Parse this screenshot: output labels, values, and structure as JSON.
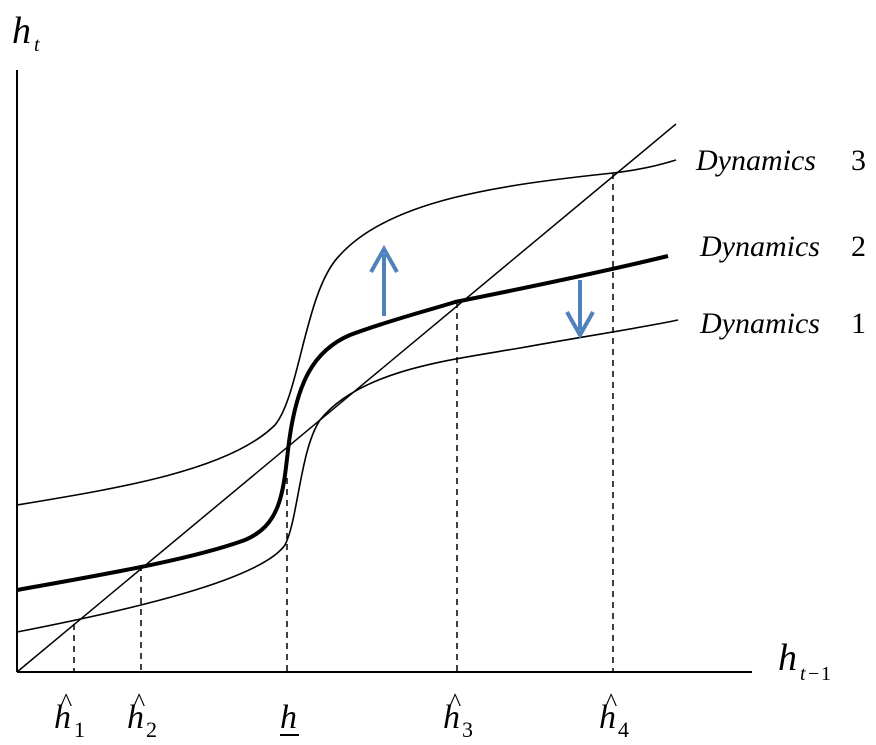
{
  "axes": {
    "y_label_base": "h",
    "y_label_sub": "t",
    "x_label_base": "h",
    "x_label_sub_var": "t",
    "x_label_sub_op": "−",
    "x_label_sub_num": "1"
  },
  "curves": [
    {
      "id": "dynamics-3",
      "label_word": "Dynamics",
      "label_num": "3",
      "stroke": "thin"
    },
    {
      "id": "dynamics-2",
      "label_word": "Dynamics",
      "label_num": "2",
      "stroke": "bold"
    },
    {
      "id": "dynamics-1",
      "label_word": "Dynamics",
      "label_num": "1",
      "stroke": "thin"
    }
  ],
  "x_markers": [
    {
      "id": "h-hat-1",
      "base": "h",
      "accent": "^",
      "sub": "1"
    },
    {
      "id": "h-hat-2",
      "base": "h",
      "accent": "^",
      "sub": "2"
    },
    {
      "id": "h-underline",
      "base": "h",
      "accent": "_",
      "sub": ""
    },
    {
      "id": "h-hat-3",
      "base": "h",
      "accent": "^",
      "sub": "3"
    },
    {
      "id": "h-hat-4",
      "base": "h",
      "accent": "^",
      "sub": "4"
    }
  ],
  "arrows": [
    {
      "id": "shift-up-arrow",
      "direction": "up",
      "color": "#4f81bd"
    },
    {
      "id": "shift-down-arrow",
      "direction": "down",
      "color": "#4f81bd"
    }
  ]
}
